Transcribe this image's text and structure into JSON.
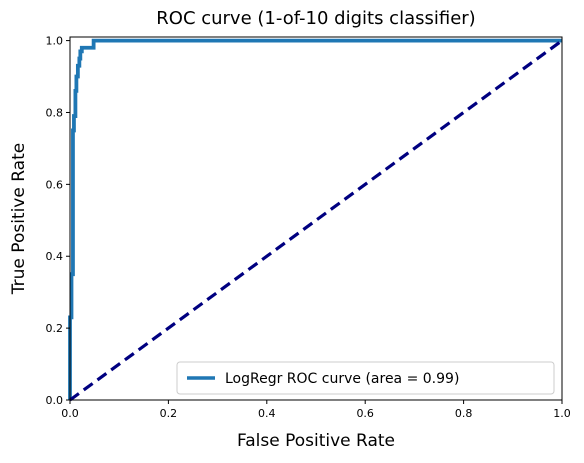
{
  "chart_data": {
    "type": "line",
    "title": "ROC curve (1-of-10 digits classifier)",
    "xlabel": "False Positive Rate",
    "ylabel": "True Positive Rate",
    "xlim": [
      0.0,
      1.0
    ],
    "ylim": [
      0.0,
      1.01
    ],
    "xticks": [
      "0.0",
      "0.2",
      "0.4",
      "0.6",
      "0.8",
      "1.0"
    ],
    "yticks": [
      "0.0",
      "0.2",
      "0.4",
      "0.6",
      "0.8",
      "1.0"
    ],
    "grid": false,
    "legend_position": "lower-right",
    "series": [
      {
        "name": "LogRegr ROC curve (area = 0.99)",
        "color": "#1f77b4",
        "style": "solid",
        "x": [
          0.0,
          0.0,
          0.003,
          0.003,
          0.006,
          0.006,
          0.008,
          0.008,
          0.011,
          0.011,
          0.013,
          0.013,
          0.016,
          0.016,
          0.019,
          0.019,
          0.021,
          0.021,
          0.024,
          0.024,
          0.03,
          0.03,
          0.048,
          0.048,
          1.0
        ],
        "y": [
          0.0,
          0.23,
          0.23,
          0.35,
          0.35,
          0.75,
          0.75,
          0.79,
          0.79,
          0.86,
          0.86,
          0.9,
          0.9,
          0.93,
          0.93,
          0.95,
          0.95,
          0.97,
          0.97,
          0.98,
          0.98,
          0.98,
          0.98,
          1.0,
          1.0
        ]
      },
      {
        "name": "",
        "color": "#000080",
        "style": "dashed",
        "x": [
          0.0,
          1.0
        ],
        "y": [
          0.0,
          1.0
        ]
      }
    ]
  }
}
